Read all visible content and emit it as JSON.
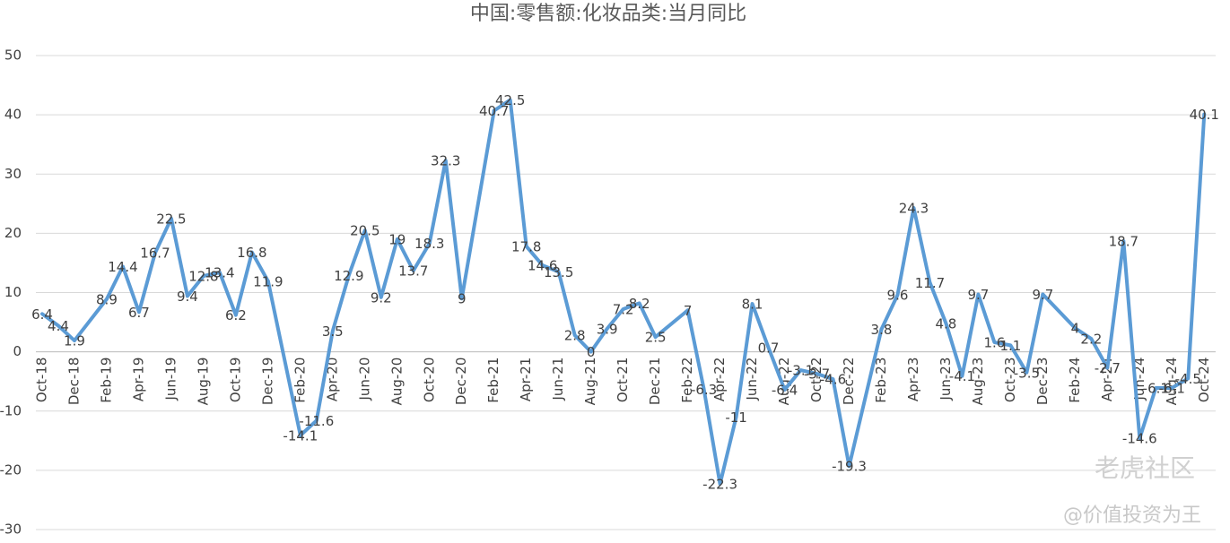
{
  "chart_data": {
    "type": "line",
    "title": "中国:零售额:化妆品类:当月同比",
    "categories": [
      "Oct-18",
      null,
      "Dec-18",
      null,
      "Feb-19",
      null,
      "Apr-19",
      null,
      "Jun-19",
      null,
      "Aug-19",
      null,
      "Oct-19",
      null,
      "Dec-19",
      null,
      "Feb-20",
      null,
      "Apr-20",
      null,
      "Jun-20",
      null,
      "Aug-20",
      null,
      "Oct-20",
      null,
      "Dec-20",
      null,
      "Feb-21",
      null,
      "Apr-21",
      null,
      "Jun-21",
      null,
      "Aug-21",
      null,
      "Oct-21",
      null,
      "Dec-21",
      null,
      "Feb-22",
      null,
      "Apr-22",
      null,
      "Jun-22",
      null,
      "Aug-22",
      null,
      "Oct-22",
      null,
      "Dec-22",
      null,
      "Feb-23",
      null,
      "Apr-23",
      null,
      "Jun-23",
      null,
      "Aug-23",
      null,
      "Oct-23",
      null,
      "Dec-23",
      null,
      "Feb-24",
      null,
      "Apr-24",
      null,
      "Jun-24",
      null,
      "Aug-24",
      null,
      "Oct-24"
    ],
    "values": [
      6.4,
      4.4,
      1.9,
      null,
      8.9,
      14.4,
      6.7,
      16.7,
      22.5,
      9.4,
      12.8,
      13.4,
      6.2,
      16.8,
      11.9,
      null,
      -14.1,
      -11.6,
      3.5,
      12.9,
      20.5,
      9.2,
      19,
      13.7,
      18.3,
      32.3,
      9,
      null,
      40.7,
      42.5,
      17.8,
      14.6,
      13.5,
      2.8,
      0,
      3.9,
      7.2,
      8.2,
      2.5,
      null,
      7,
      -6.3,
      -22.3,
      -11,
      8.1,
      0.7,
      -6.4,
      -3.1,
      -3.7,
      -4.6,
      -19.3,
      null,
      3.8,
      9.6,
      24.3,
      11.7,
      4.8,
      -4.1,
      9.7,
      1.6,
      1.1,
      -3.5,
      9.7,
      null,
      4,
      2.2,
      -2.7,
      18.7,
      -14.6,
      -6.1,
      -6.1,
      -4.5,
      40.1
    ],
    "color": "#5b9bd5",
    "ylim": [
      -30,
      50
    ],
    "yticks": [
      -30,
      -20,
      -10,
      0,
      10,
      20,
      30,
      40,
      50
    ],
    "grid": true
  },
  "watermark": {
    "brand": "老虎社区",
    "author": "@价值投资为王"
  }
}
